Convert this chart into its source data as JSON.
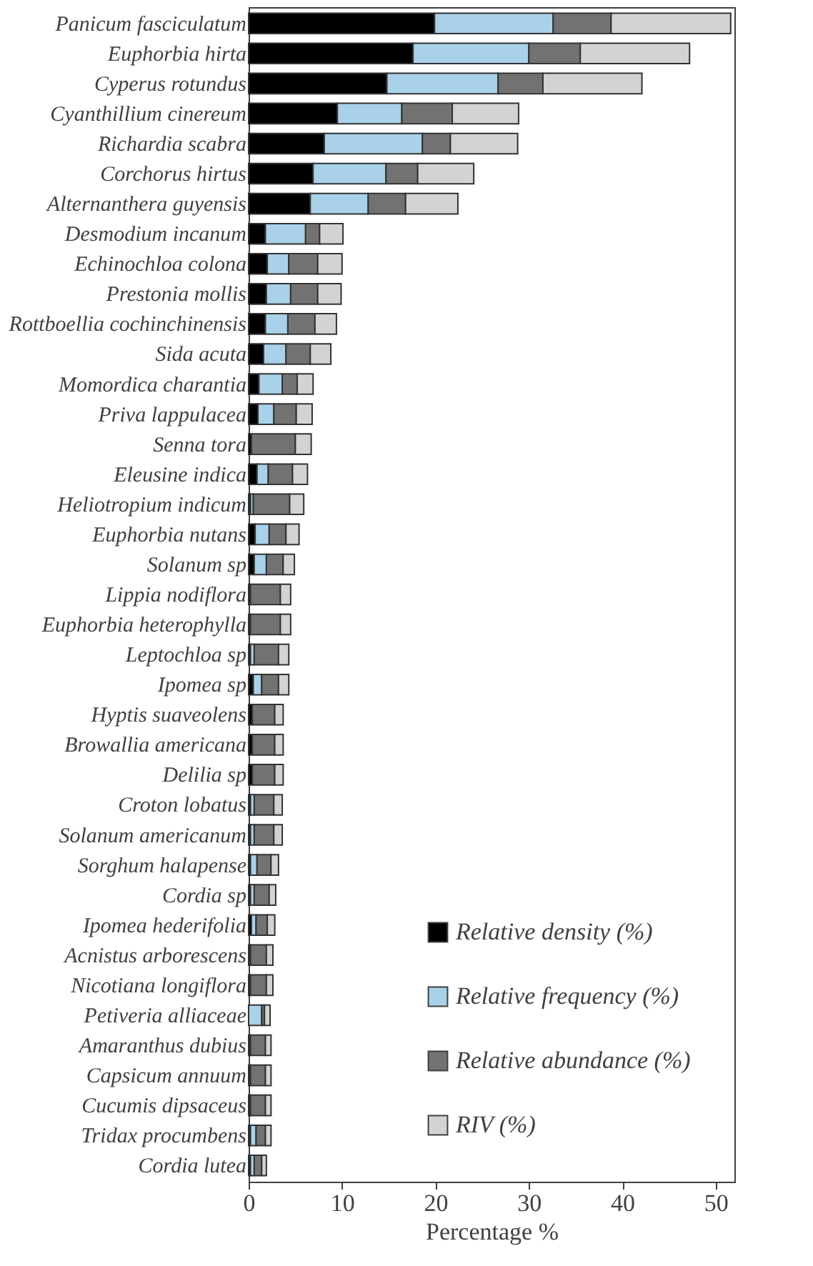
{
  "chart_data": {
    "type": "bar",
    "orientation": "horizontal",
    "stacked": true,
    "xlabel": "Percentage %",
    "categories": [
      "Panicum fasciculatum",
      "Euphorbia hirta",
      "Cyperus rotundus",
      "Cyanthillium cinereum",
      "Richardia scabra",
      "Corchorus hirtus",
      "Alternanthera guyensis",
      "Desmodium incanum",
      "Echinochloa colona",
      "Prestonia mollis",
      "Rottboellia cochinchinensis",
      "Sida acuta",
      "Momordica charantia",
      "Priva lappulacea",
      "Senna tora",
      "Eleusine indica",
      "Heliotropium indicum",
      "Euphorbia nutans",
      "Solanum sp",
      "Lippia nodiflora",
      "Euphorbia heterophylla",
      "Leptochloa sp",
      "Ipomea sp",
      "Hyptis suaveolens",
      "Browallia americana",
      "Delilia sp",
      "Croton lobatus",
      "Solanum americanum",
      "Sorghum halapense",
      "Cordia sp",
      "Ipomea hederifolia",
      "Acnistus arborescens",
      "Nicotiana longiflora",
      "Petiveria alliaceae",
      "Amaranthus dubius",
      "Capsicum annuum",
      "Cucumis dipsaceus",
      "Tridax procumbens",
      "Cordia lutea"
    ],
    "series": [
      {
        "name": "Relative density (%)",
        "color": "#000000",
        "values": [
          19.9,
          17.6,
          14.8,
          9.5,
          8.1,
          6.9,
          6.6,
          1.8,
          2.0,
          1.9,
          1.8,
          1.6,
          1.1,
          1.0,
          0.3,
          0.9,
          0.2,
          0.7,
          0.6,
          0.2,
          0.2,
          0.2,
          0.5,
          0.4,
          0.4,
          0.4,
          0.2,
          0.2,
          0.2,
          0.2,
          0.3,
          0.2,
          0.2,
          null,
          0.2,
          0.2,
          0.2,
          0.2,
          0.2
        ]
      },
      {
        "name": "Relative frequency (%)",
        "color": "#a9d1ea",
        "values": [
          12.7,
          12.4,
          11.9,
          6.9,
          10.5,
          7.8,
          6.2,
          4.3,
          2.3,
          2.6,
          2.4,
          2.4,
          2.5,
          1.7,
          0,
          1.2,
          0.3,
          1.5,
          1.3,
          0,
          0,
          0.4,
          0.9,
          0,
          0,
          0,
          0.4,
          0.4,
          0.7,
          0.4,
          0.5,
          0,
          0,
          1.4,
          0,
          0,
          0,
          0.6,
          0.4
        ]
      },
      {
        "name": "Relative abundance (%)",
        "color": "#727272",
        "values": [
          6.2,
          5.5,
          4.8,
          5.4,
          3.0,
          3.4,
          4.0,
          1.5,
          3.1,
          2.9,
          2.9,
          2.6,
          1.6,
          2.4,
          4.7,
          2.6,
          3.9,
          1.8,
          1.8,
          3.2,
          3.2,
          2.6,
          1.8,
          2.4,
          2.4,
          2.4,
          2.1,
          2.1,
          1.5,
          1.6,
          1.2,
          1.7,
          1.7,
          0.3,
          1.6,
          1.6,
          1.6,
          1.0,
          0.8
        ]
      },
      {
        "name": "RIV (%)",
        "color": "#d3d3d3",
        "values": [
          12.8,
          11.7,
          10.6,
          7.1,
          7.2,
          6.0,
          5.6,
          2.5,
          2.6,
          2.5,
          2.3,
          2.2,
          1.7,
          1.7,
          1.7,
          1.6,
          1.5,
          1.4,
          1.2,
          1.1,
          1.1,
          1.1,
          1.1,
          0.9,
          0.9,
          0.9,
          0.9,
          0.9,
          0.8,
          0.7,
          0.8,
          0.7,
          0.7,
          0.6,
          0.6,
          0.6,
          0.6,
          0.6,
          0.5
        ]
      }
    ],
    "xlim": [
      0,
      52
    ],
    "xticks": [
      0,
      10,
      20,
      30,
      40,
      50
    ],
    "grid": false,
    "legend": "bottom right"
  }
}
